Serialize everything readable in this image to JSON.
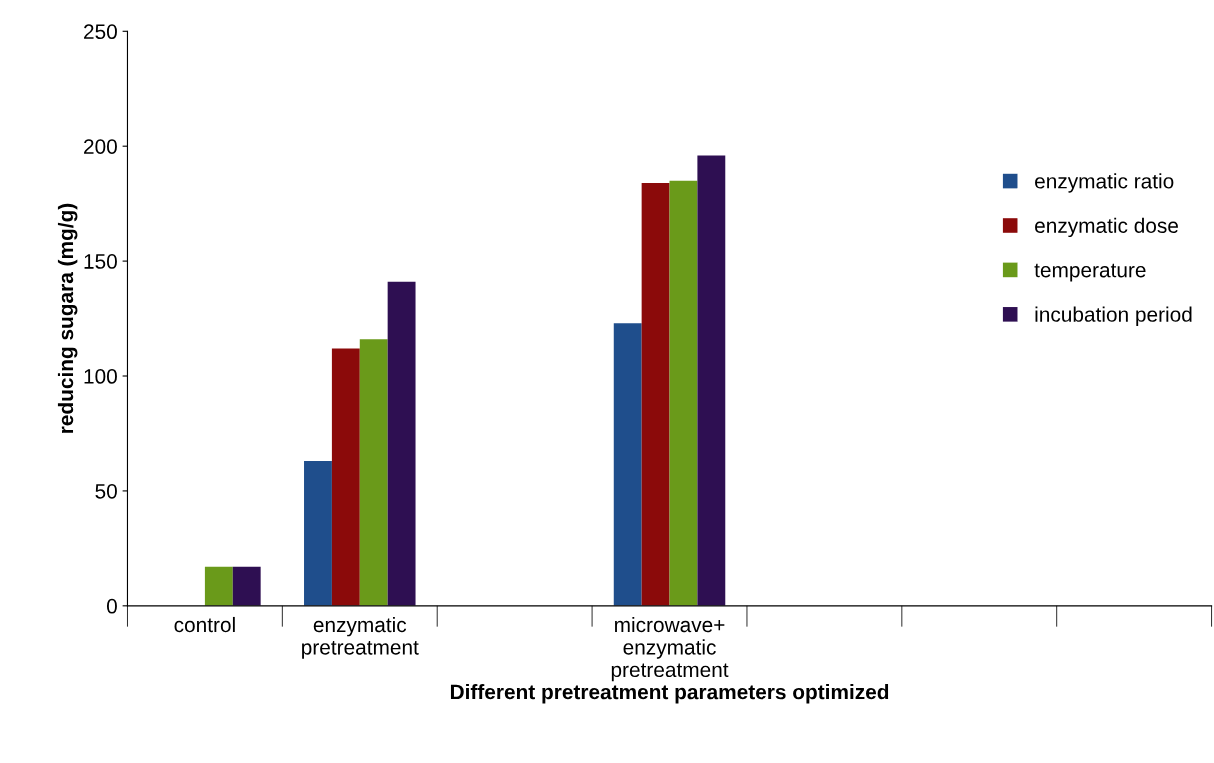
{
  "chart_data": {
    "type": "bar",
    "xlabel": "Different pretreatment parameters optimized",
    "ylabel": "reducing sugara (mg/g)",
    "categories": [
      "control",
      "enzymatic\npretreatment",
      null,
      "microwave+\nenzymatic\npretreatment",
      null,
      null,
      null
    ],
    "series": [
      {
        "name": "enzymatic ratio",
        "color": "#1f4e8c",
        "values": [
          null,
          63,
          null,
          123,
          null,
          null,
          null
        ]
      },
      {
        "name": "enzymatic dose",
        "color": "#8b0a0a",
        "values": [
          null,
          112,
          null,
          184,
          null,
          null,
          null
        ]
      },
      {
        "name": "temperature",
        "color": "#6a9a1a",
        "values": [
          17,
          116,
          null,
          185,
          null,
          null,
          null
        ]
      },
      {
        "name": "incubation period",
        "color": "#2e0f52",
        "values": [
          17,
          141,
          null,
          196,
          null,
          null,
          null
        ]
      }
    ],
    "ylim": [
      0,
      250
    ],
    "yticks": [
      0,
      50,
      100,
      150,
      200,
      250
    ],
    "grid": false,
    "legend": "right"
  }
}
